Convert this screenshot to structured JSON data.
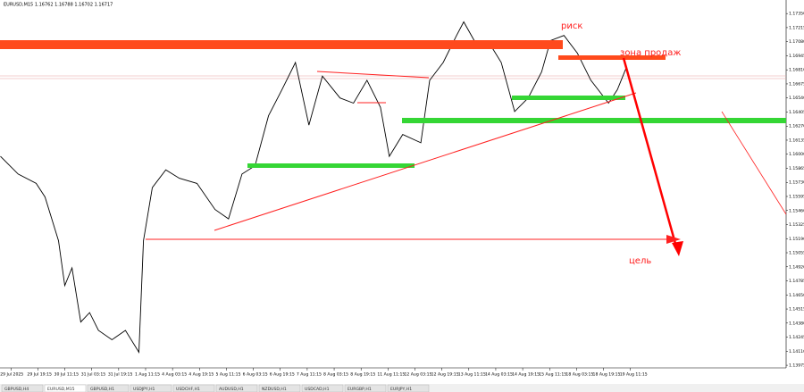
{
  "chart_data": {
    "type": "line",
    "title": "EURUSD,M15  1.16762 1.16788 1.16702 1.16717",
    "xlim": [
      -26,
      1842
    ],
    "xticks": [
      {
        "value": 0,
        "label": "29 Jul 2025"
      },
      {
        "value": 64,
        "label": "29 Jul 19:15"
      },
      {
        "value": 128,
        "label": "30 Jul 11:15"
      },
      {
        "value": 192,
        "label": "31 Jul 03:15"
      },
      {
        "value": 256,
        "label": "31 Jul 19:15"
      },
      {
        "value": 320,
        "label": "1 Aug 11:15"
      },
      {
        "value": 384,
        "label": "4 Aug 03:15"
      },
      {
        "value": 448,
        "label": "4 Aug 19:15"
      },
      {
        "value": 512,
        "label": "5 Aug 11:15"
      },
      {
        "value": 576,
        "label": "6 Aug 03:15"
      },
      {
        "value": 640,
        "label": "6 Aug 19:15"
      },
      {
        "value": 704,
        "label": "7 Aug 11:15"
      },
      {
        "value": 768,
        "label": "8 Aug 03:15"
      },
      {
        "value": 832,
        "label": "8 Aug 19:15"
      },
      {
        "value": 896,
        "label": "11 Aug 11:15"
      },
      {
        "value": 960,
        "label": "12 Aug 03:15"
      },
      {
        "value": 1024,
        "label": "12 Aug 19:15"
      },
      {
        "value": 1088,
        "label": "13 Aug 11:15"
      },
      {
        "value": 1152,
        "label": "14 Aug 03:15"
      },
      {
        "value": 1216,
        "label": "14 Aug 19:15"
      },
      {
        "value": 1280,
        "label": "15 Aug 11:15"
      },
      {
        "value": 1344,
        "label": "18 Aug 03:15"
      },
      {
        "value": 1408,
        "label": "18 Aug 19:15"
      },
      {
        "value": 1472,
        "label": "19 Aug 11:15"
      }
    ],
    "ylim": [
      1.1395,
      1.1748
    ],
    "yticks": [
      {
        "value": 1.13975,
        "label": "1.13975"
      },
      {
        "value": 1.1411,
        "label": "1.14110"
      },
      {
        "value": 1.14245,
        "label": "1.14245"
      },
      {
        "value": 1.1438,
        "label": "1.14380"
      },
      {
        "value": 1.14515,
        "label": "1.14515"
      },
      {
        "value": 1.1465,
        "label": "1.14650"
      },
      {
        "value": 1.14785,
        "label": "1.14785"
      },
      {
        "value": 1.1492,
        "label": "1.14920"
      },
      {
        "value": 1.15055,
        "label": "1.15055"
      },
      {
        "value": 1.1519,
        "label": "1.15190"
      },
      {
        "value": 1.15325,
        "label": "1.15325"
      },
      {
        "value": 1.1546,
        "label": "1.15460"
      },
      {
        "value": 1.15595,
        "label": "1.15595"
      },
      {
        "value": 1.1573,
        "label": "1.15730"
      },
      {
        "value": 1.15865,
        "label": "1.15865"
      },
      {
        "value": 1.16,
        "label": "1.16000"
      },
      {
        "value": 1.16135,
        "label": "1.16135"
      },
      {
        "value": 1.1627,
        "label": "1.16270"
      },
      {
        "value": 1.16405,
        "label": "1.16405"
      },
      {
        "value": 1.1654,
        "label": "1.16540"
      },
      {
        "value": 1.16675,
        "label": "1.16675"
      },
      {
        "value": 1.1681,
        "label": "1.16810"
      },
      {
        "value": 1.16945,
        "label": "1.16945"
      },
      {
        "value": 1.1708,
        "label": "1.17080"
      },
      {
        "value": 1.17215,
        "label": "1.17215"
      },
      {
        "value": 1.1735,
        "label": "1.17350"
      }
    ],
    "x": [
      -25,
      17,
      60,
      81,
      113,
      128,
      145,
      166,
      187,
      208,
      240,
      272,
      304,
      315,
      336,
      368,
      400,
      442,
      485,
      517,
      549,
      580,
      612,
      644,
      676,
      708,
      740,
      782,
      814,
      846,
      878,
      899,
      931,
      974,
      995,
      1027,
      1059,
      1076,
      1101,
      1133,
      1165,
      1197,
      1229,
      1261,
      1282,
      1314,
      1346,
      1378,
      1420,
      1441,
      1463
    ],
    "series": [
      {
        "name": "EURUSD",
        "color": "#000000",
        "values": [
          1.1598,
          1.1581,
          1.1572,
          1.1559,
          1.1517,
          1.1474,
          1.1491,
          1.1439,
          1.1448,
          1.1431,
          1.1422,
          1.1431,
          1.141,
          1.1517,
          1.1568,
          1.1585,
          1.1577,
          1.1572,
          1.1547,
          1.1538,
          1.1581,
          1.1589,
          1.1637,
          1.1662,
          1.1688,
          1.1628,
          1.1675,
          1.1654,
          1.1649,
          1.1671,
          1.1645,
          1.1598,
          1.1619,
          1.1611,
          1.1671,
          1.1688,
          1.1714,
          1.1727,
          1.1709,
          1.1709,
          1.1688,
          1.1641,
          1.1654,
          1.1679,
          1.1709,
          1.1714,
          1.1697,
          1.1671,
          1.1649,
          1.1662,
          1.1684
        ]
      }
    ],
    "annotations": [
      "риск",
      "зона продаж",
      "цель"
    ]
  },
  "tabs": [
    "GBPUSD,H4",
    "EURUSD,M15",
    "GBPUSD,H1",
    "USDJPY,H1",
    "USDCHF,H1",
    "AUDUSD,H1",
    "NZDUSD,H1",
    "USDCAD,H1",
    "EURGBP,H1",
    "EURJPY,H1"
  ]
}
